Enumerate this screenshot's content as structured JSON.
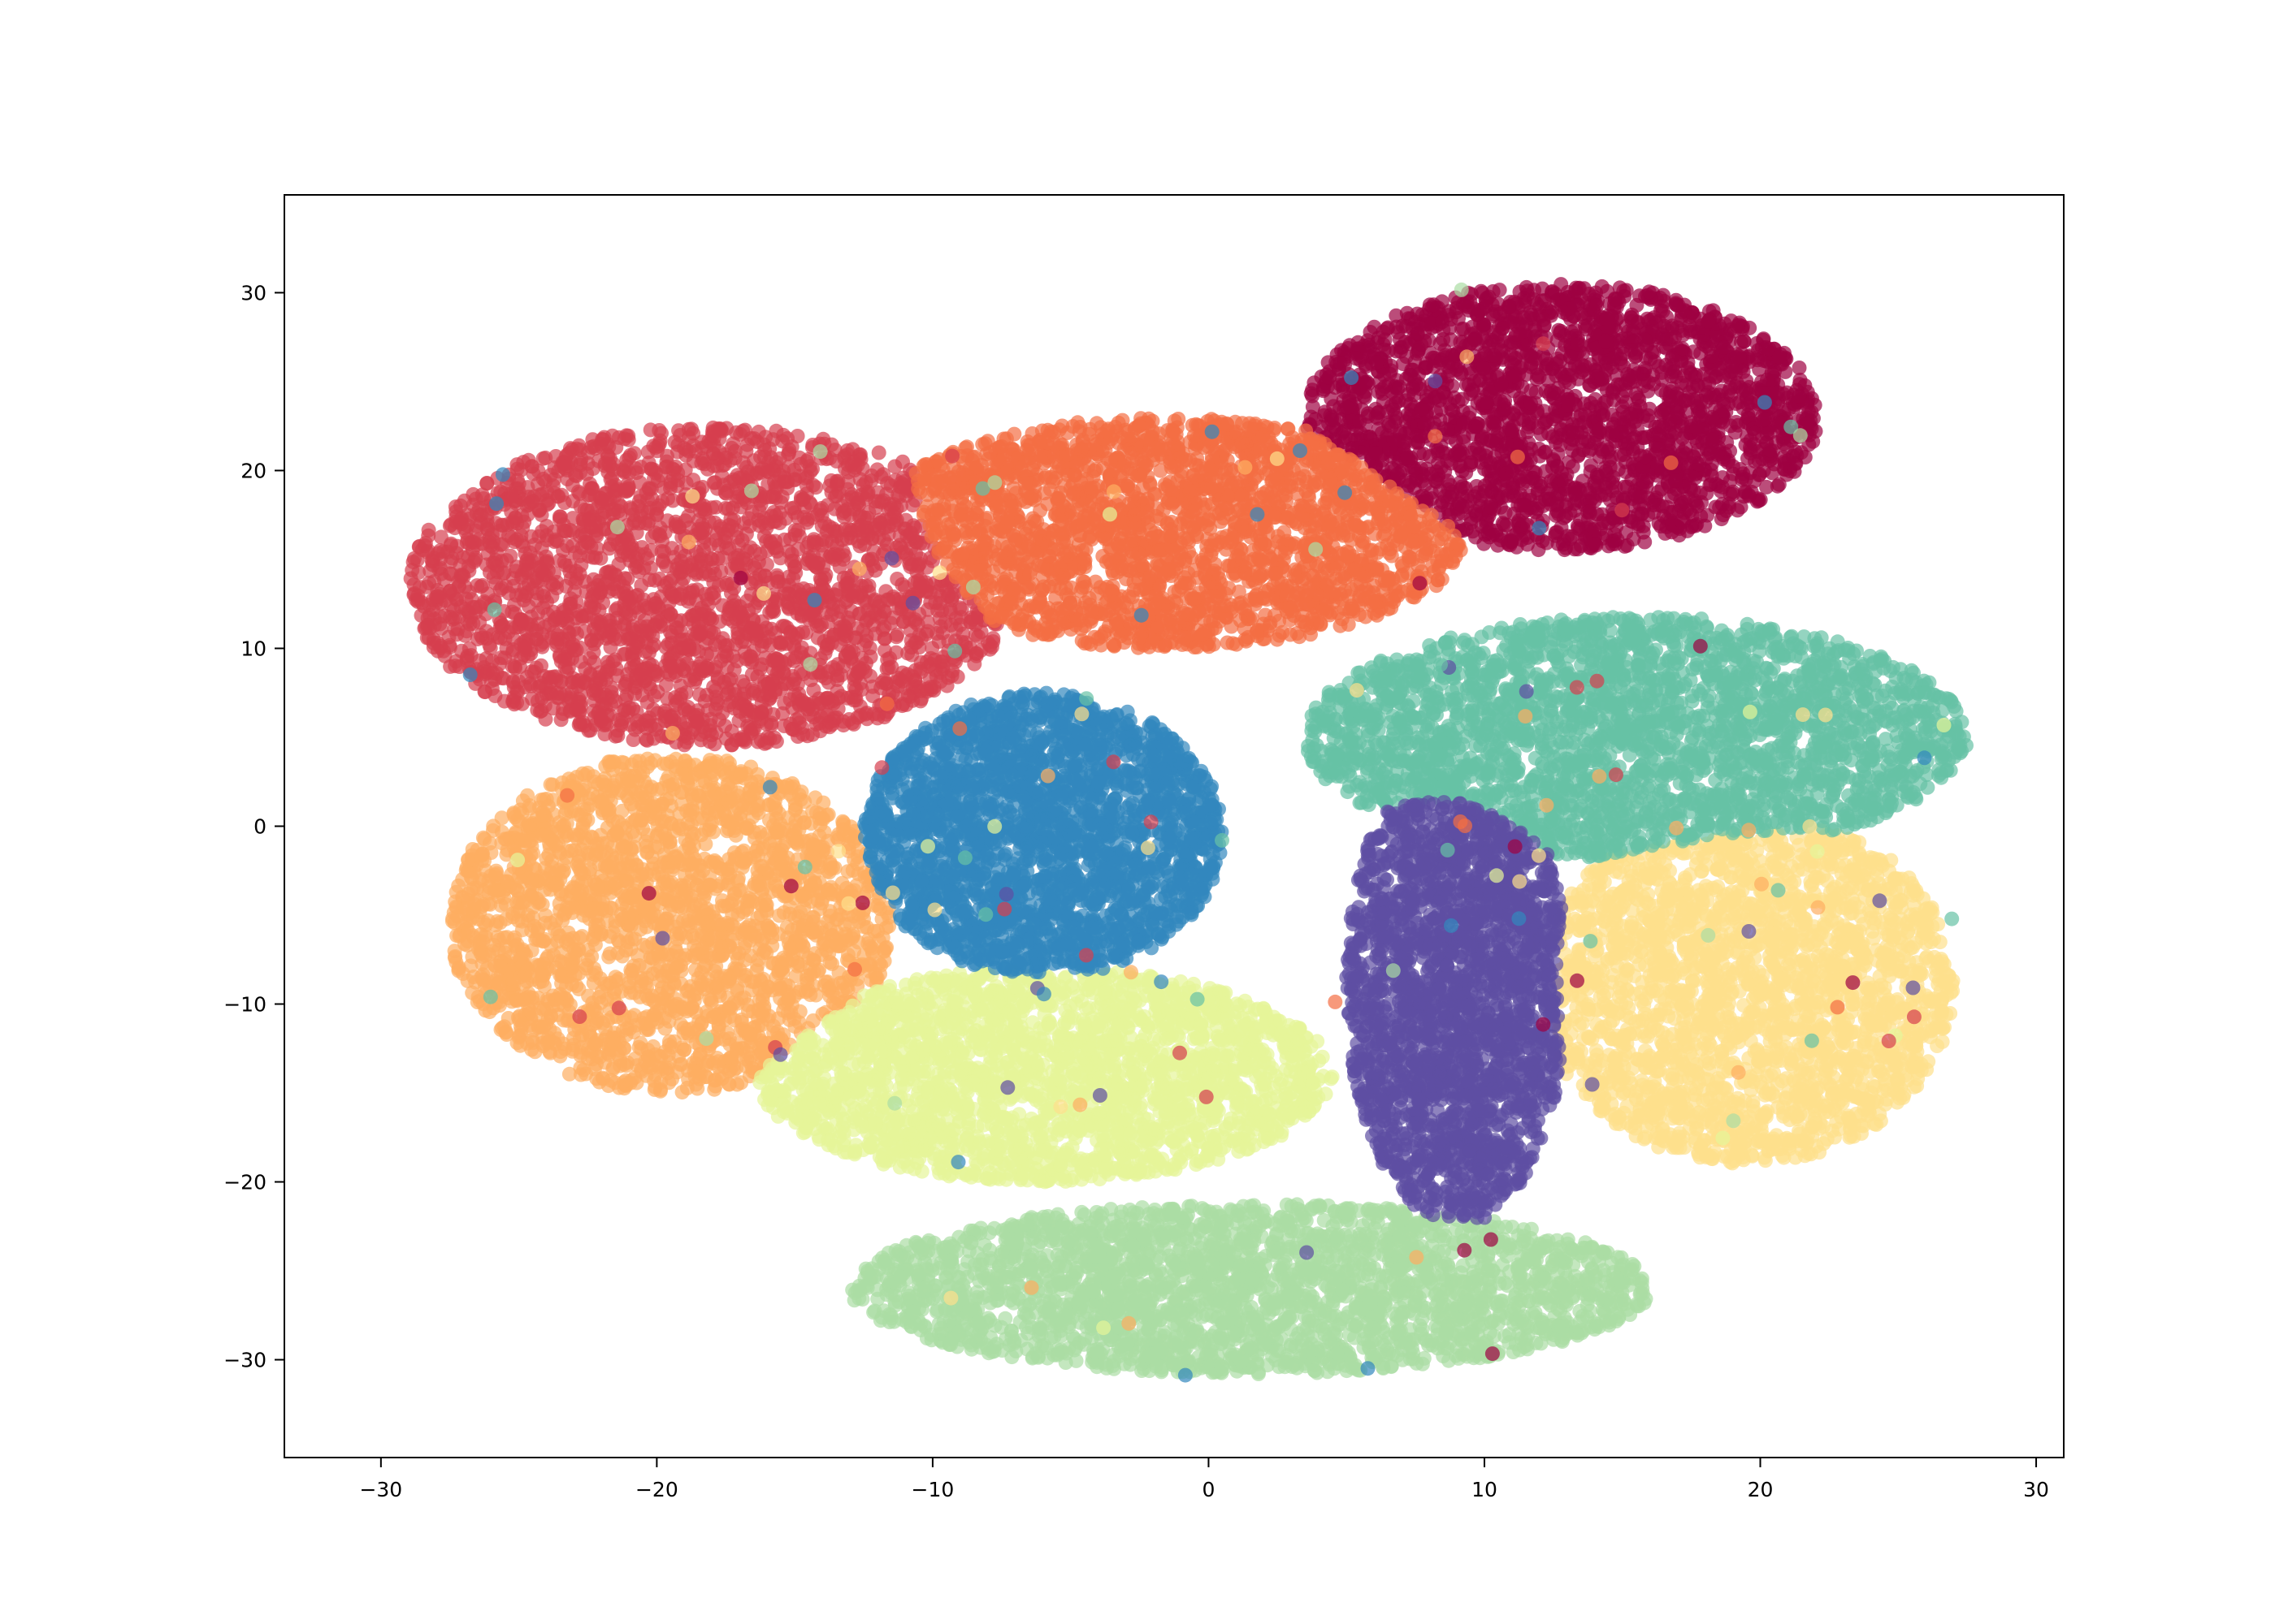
{
  "chart_data": {
    "type": "scatter",
    "title": "",
    "xlabel": "",
    "ylabel": "",
    "xlim": [
      -33.5,
      31.0
    ],
    "ylim": [
      -35.5,
      35.5
    ],
    "xticks": [
      -30,
      -20,
      -10,
      0,
      10,
      20,
      30
    ],
    "yticks": [
      -30,
      -20,
      -10,
      0,
      10,
      20,
      30
    ],
    "xtick_labels": [
      "−30",
      "−20",
      "−10",
      "0",
      "10",
      "20",
      "30"
    ],
    "ytick_labels": [
      "−30",
      "−20",
      "−10",
      "0",
      "10",
      "20",
      "30"
    ],
    "grid": false,
    "legend": "none",
    "point_alpha": 0.7,
    "clusters": [
      {
        "color": "#9e0142",
        "center": [
          12.8,
          23.0
        ],
        "radii": [
          9.3,
          7.5
        ],
        "count": 2400
      },
      {
        "color": "#d53e4f",
        "center": [
          -18.0,
          13.5
        ],
        "radii": [
          11.0,
          9.0
        ],
        "count": 2700
      },
      {
        "color": "#f46d43",
        "center": [
          -1.5,
          16.5
        ],
        "radii": [
          11.0,
          6.5
        ],
        "count": 2400
      },
      {
        "color": "#fdae61",
        "center": [
          -19.5,
          -5.5
        ],
        "radii": [
          8.0,
          9.5
        ],
        "count": 2400
      },
      {
        "color": "#fee08b",
        "center": [
          19.5,
          -9.0
        ],
        "radii": [
          7.5,
          10.0
        ],
        "count": 2400
      },
      {
        "color": "#e6f598",
        "center": [
          -6.0,
          -14.0
        ],
        "radii": [
          10.5,
          6.0
        ],
        "count": 2400
      },
      {
        "color": "#abdda4",
        "center": [
          1.5,
          -26.0
        ],
        "radii": [
          14.5,
          4.8
        ],
        "count": 2600
      },
      {
        "color": "#66c2a5",
        "center": [
          15.5,
          5.0
        ],
        "radii": [
          12.0,
          6.8
        ],
        "count": 2700
      },
      {
        "color": "#3288bd",
        "center": [
          -6.0,
          -0.5
        ],
        "radii": [
          6.5,
          8.0
        ],
        "count": 2400
      },
      {
        "color": "#5e4fa2",
        "center": [
          9.0,
          -9.0
        ],
        "radii": [
          4.0,
          13.5
        ],
        "count": 2200
      }
    ]
  }
}
